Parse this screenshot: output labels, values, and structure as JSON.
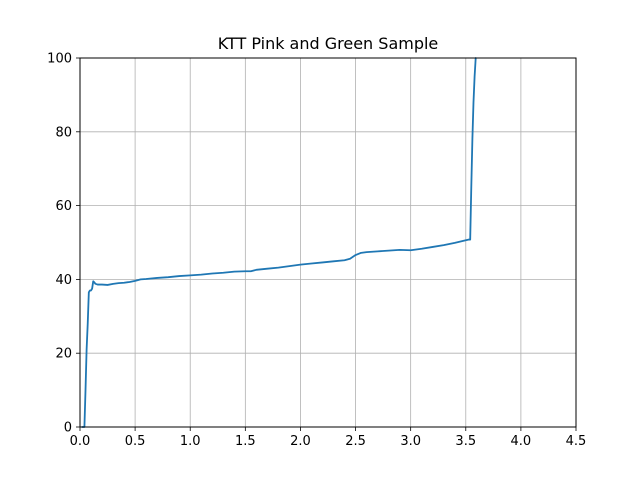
{
  "chart_data": {
    "type": "line",
    "title": "KTT Pink and Green Sample",
    "xlabel": "",
    "ylabel": "",
    "xlim": [
      0.0,
      4.5
    ],
    "ylim": [
      0,
      100
    ],
    "xticks": [
      "0.0",
      "0.5",
      "1.0",
      "1.5",
      "2.0",
      "2.5",
      "3.0",
      "3.5",
      "4.0",
      "4.5"
    ],
    "yticks": [
      "0",
      "20",
      "40",
      "60",
      "80",
      "100"
    ],
    "grid": true,
    "line_color": "#1f77b4",
    "series": [
      {
        "x": [
          0.02,
          0.03,
          0.04,
          0.05,
          0.06,
          0.07,
          0.08,
          0.09,
          0.1,
          0.11,
          0.12,
          0.13,
          0.14,
          0.16,
          0.2,
          0.25,
          0.3,
          0.35,
          0.4,
          0.45,
          0.5,
          0.55,
          0.6,
          0.7,
          0.8,
          0.9,
          1.0,
          1.1,
          1.2,
          1.3,
          1.4,
          1.5,
          1.55,
          1.6,
          1.7,
          1.8,
          1.9,
          2.0,
          2.1,
          2.2,
          2.3,
          2.4,
          2.45,
          2.5,
          2.55,
          2.6,
          2.7,
          2.8,
          2.9,
          3.0,
          3.1,
          3.2,
          3.3,
          3.4,
          3.5,
          3.53,
          3.54,
          3.55,
          3.56,
          3.57,
          3.58,
          3.59
        ],
        "y": [
          0,
          0,
          0,
          10,
          21,
          28,
          36.5,
          37,
          37,
          37.5,
          39.5,
          39.2,
          38.8,
          38.6,
          38.6,
          38.5,
          38.8,
          39.0,
          39.1,
          39.3,
          39.6,
          40.0,
          40.1,
          40.4,
          40.6,
          40.9,
          41.1,
          41.3,
          41.6,
          41.8,
          42.1,
          42.2,
          42.2,
          42.6,
          42.9,
          43.2,
          43.6,
          44.0,
          44.3,
          44.6,
          44.9,
          45.2,
          45.6,
          46.6,
          47.2,
          47.4,
          47.6,
          47.8,
          48.0,
          47.9,
          48.3,
          48.8,
          49.3,
          49.9,
          50.6,
          50.8,
          50.8,
          65,
          78,
          88,
          95,
          100
        ]
      }
    ]
  }
}
